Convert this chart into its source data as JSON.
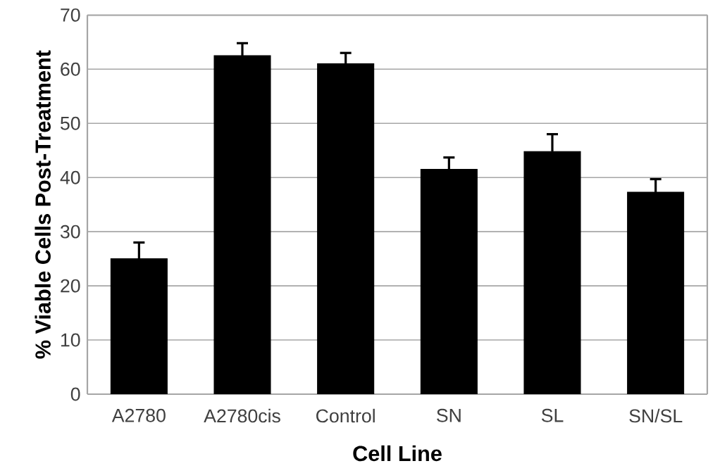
{
  "chart_data": {
    "type": "bar",
    "xlabel": "Cell Line",
    "ylabel": "% Viable Cells Post-Treatment",
    "categories": [
      "A2780",
      "A2780cis",
      "Control",
      "SN",
      "SL",
      "SN/SL"
    ],
    "values": [
      25,
      62.5,
      61,
      41.5,
      44.8,
      37.3
    ],
    "errors": [
      3,
      2.3,
      2,
      2.2,
      3.2,
      2.4
    ],
    "color": "#000000",
    "ylim": [
      0,
      70
    ],
    "yticks": [
      0,
      10,
      20,
      30,
      40,
      50,
      60,
      70
    ],
    "grid": "y"
  }
}
